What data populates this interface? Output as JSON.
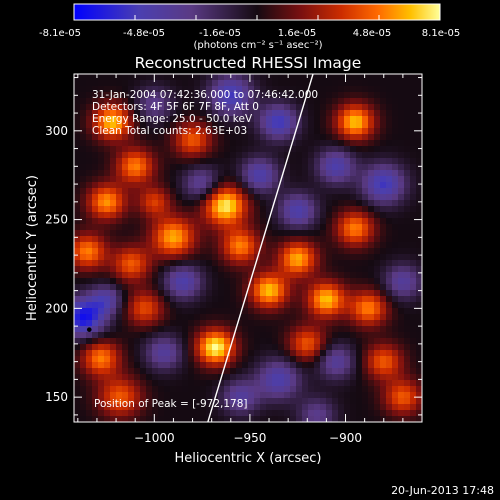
{
  "colors": {
    "background": "#000000",
    "text": "#ffffff",
    "limb_line": "#ffffff",
    "colormap": [
      "#0000ff",
      "#4b3fb0",
      "#5a3a84",
      "#150a12",
      "#7a1010",
      "#cc2c00",
      "#ff6a00",
      "#ffc000",
      "#ffff9a"
    ]
  },
  "colorbar": {
    "ticks": [
      "-8.1e-05",
      "-4.8e-05",
      "-1.6e-05",
      "1.6e-05",
      "4.8e-05",
      "8.1e-05"
    ],
    "unit_label": "(photons cm⁻² s⁻¹ asec⁻²)",
    "range": [
      -8.1e-05,
      8.1e-05
    ]
  },
  "chart_data": {
    "type": "heatmap",
    "title": "Reconstructed RHESSI Image",
    "xlabel": "Heliocentric X (arcsec)",
    "ylabel": "Heliocentric Y (arcsec)",
    "xlim": [
      -1042,
      -860
    ],
    "ylim": [
      136,
      332
    ],
    "xticks": [
      -1000,
      -950,
      -900
    ],
    "xtick_labels": [
      "−1000",
      "−950",
      "−900"
    ],
    "yticks": [
      150,
      200,
      250,
      300
    ],
    "ytick_labels": [
      "150",
      "200",
      "250",
      "300"
    ],
    "annotations": [
      "31-Jan-2004 07:42:36.000 to 07:46:42.000",
      "Detectors: 4F 5F 6F 7F 8F, Att 0",
      "Energy Range: 25.0 - 50.0 keV",
      "Clean    Total counts: 2.63E+03"
    ],
    "peak_label": "Position of Peak = [-972,178]",
    "peak_position": [
      -972,
      178
    ],
    "limb_line": [
      [
        -972,
        136
      ],
      [
        -917,
        332
      ]
    ],
    "marker": [
      -1034,
      188
    ],
    "blobs": [
      {
        "x": -1022,
        "y": 305,
        "v": 0.85,
        "s": 7
      },
      {
        "x": -1010,
        "y": 280,
        "v": 0.7,
        "s": 7
      },
      {
        "x": -1025,
        "y": 260,
        "v": 0.75,
        "s": 7
      },
      {
        "x": -1035,
        "y": 232,
        "v": 0.7,
        "s": 7
      },
      {
        "x": -1012,
        "y": 225,
        "v": 0.6,
        "s": 7
      },
      {
        "x": -1028,
        "y": 172,
        "v": 0.7,
        "s": 7
      },
      {
        "x": -1018,
        "y": 150,
        "v": 0.6,
        "s": 8
      },
      {
        "x": -1005,
        "y": 200,
        "v": 0.55,
        "s": 7
      },
      {
        "x": -990,
        "y": 240,
        "v": 0.8,
        "s": 8
      },
      {
        "x": -980,
        "y": 295,
        "v": 0.6,
        "s": 7
      },
      {
        "x": -968,
        "y": 178,
        "v": 1.0,
        "s": 7
      },
      {
        "x": -963,
        "y": 258,
        "v": 0.98,
        "s": 8
      },
      {
        "x": -955,
        "y": 235,
        "v": 0.7,
        "s": 7
      },
      {
        "x": -940,
        "y": 210,
        "v": 0.85,
        "s": 7
      },
      {
        "x": -925,
        "y": 228,
        "v": 0.8,
        "s": 7
      },
      {
        "x": -920,
        "y": 180,
        "v": 0.6,
        "s": 7
      },
      {
        "x": -910,
        "y": 205,
        "v": 0.85,
        "s": 7
      },
      {
        "x": -895,
        "y": 305,
        "v": 0.85,
        "s": 7
      },
      {
        "x": -895,
        "y": 245,
        "v": 0.7,
        "s": 7
      },
      {
        "x": -888,
        "y": 200,
        "v": 0.7,
        "s": 7
      },
      {
        "x": -870,
        "y": 150,
        "v": 0.6,
        "s": 7
      },
      {
        "x": -880,
        "y": 170,
        "v": 0.6,
        "s": 7
      },
      {
        "x": -1000,
        "y": 260,
        "v": 0.5,
        "s": 6
      },
      {
        "x": -1037,
        "y": 195,
        "v": -0.9,
        "s": 8
      },
      {
        "x": -1025,
        "y": 205,
        "v": -0.5,
        "s": 6
      },
      {
        "x": -960,
        "y": 320,
        "v": -0.7,
        "s": 8
      },
      {
        "x": -935,
        "y": 305,
        "v": -0.7,
        "s": 7
      },
      {
        "x": -945,
        "y": 275,
        "v": -0.6,
        "s": 7
      },
      {
        "x": -925,
        "y": 255,
        "v": -0.6,
        "s": 7
      },
      {
        "x": -905,
        "y": 280,
        "v": -0.6,
        "s": 7
      },
      {
        "x": -880,
        "y": 270,
        "v": -0.7,
        "s": 8
      },
      {
        "x": -985,
        "y": 215,
        "v": -0.6,
        "s": 7
      },
      {
        "x": -975,
        "y": 270,
        "v": -0.5,
        "s": 7
      },
      {
        "x": -995,
        "y": 175,
        "v": -0.5,
        "s": 7
      },
      {
        "x": -935,
        "y": 160,
        "v": -0.6,
        "s": 8
      },
      {
        "x": -905,
        "y": 170,
        "v": -0.5,
        "s": 7
      },
      {
        "x": -955,
        "y": 150,
        "v": -0.5,
        "s": 7
      },
      {
        "x": -870,
        "y": 215,
        "v": -0.5,
        "s": 7
      },
      {
        "x": -1000,
        "y": 315,
        "v": -0.4,
        "s": 7
      },
      {
        "x": -915,
        "y": 140,
        "v": -0.4,
        "s": 7
      }
    ]
  },
  "footer": {
    "timestamp": "20-Jun-2013 17:48"
  }
}
